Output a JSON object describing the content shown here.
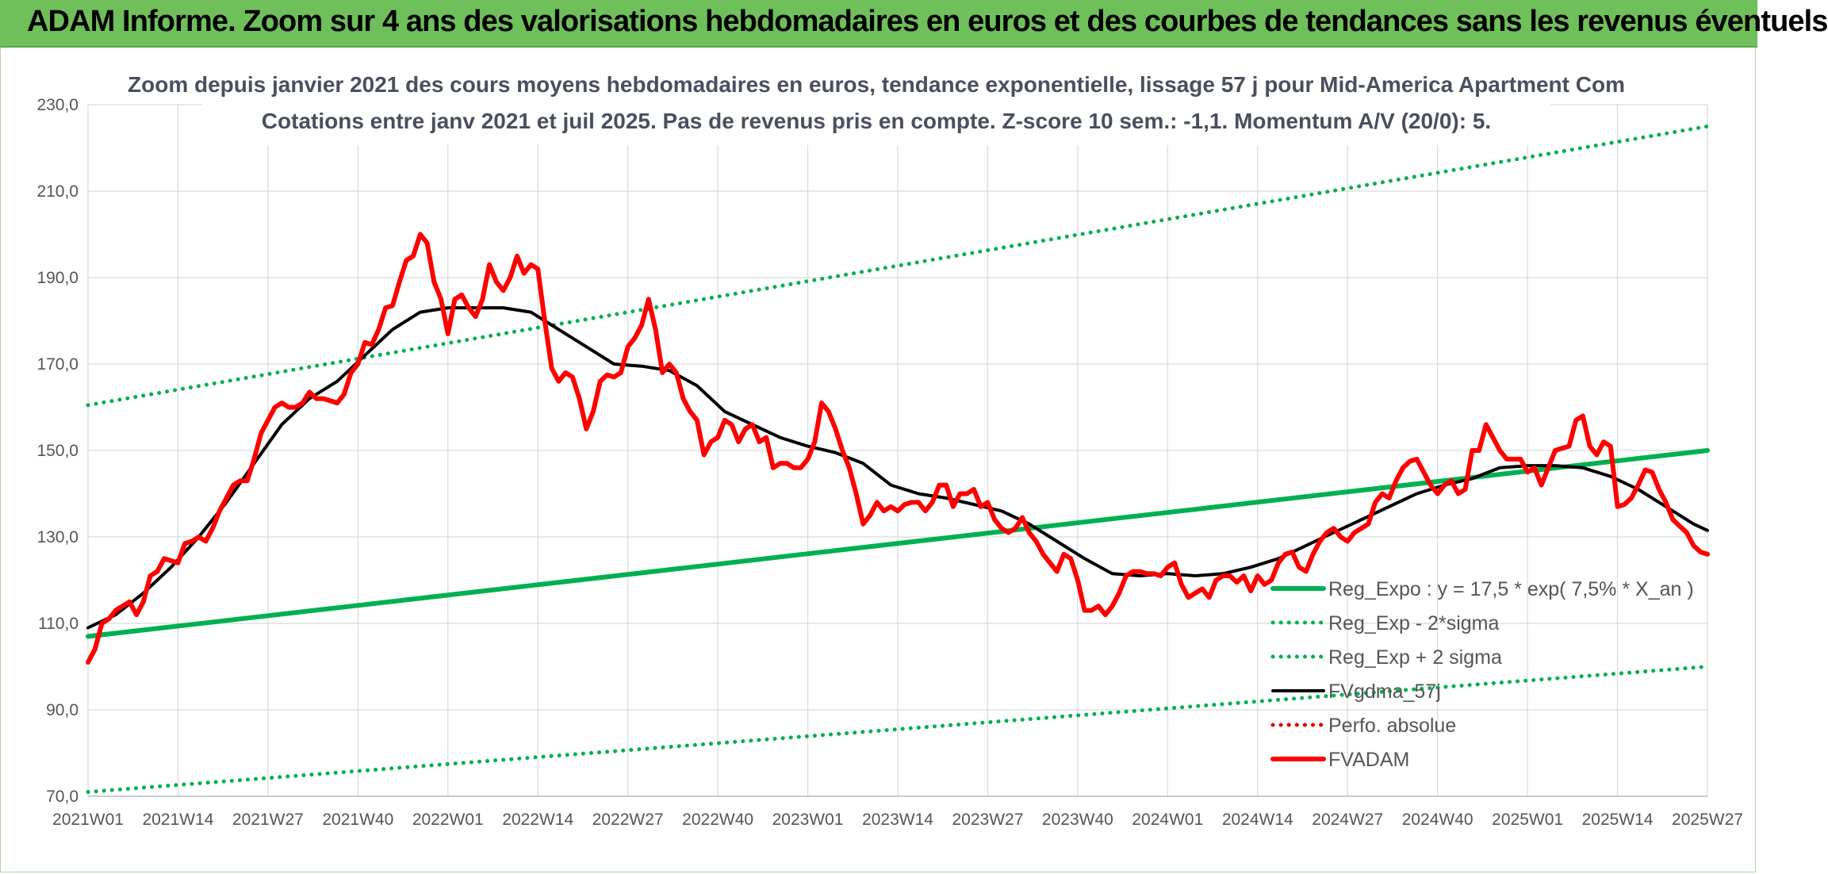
{
  "banner": {
    "title": "ADAM Informe. Zoom sur 4 ans des valorisations hebdomadaires en euros et des courbes de tendances sans les revenus éventuels"
  },
  "chart_data": {
    "type": "line",
    "title_line1": "Zoom depuis janvier 2021 des cours moyens hebdomadaires en euros, tendance exponentielle, lissage 57 j pour Mid-America Apartment Com",
    "title_line2": "Cotations entre janv 2021 et juil 2025. Pas de revenus pris en compte. Z-score 10 sem.: -1,1. Momentum A/V (20/0): 5.",
    "xlabel": "",
    "ylabel": "",
    "ylim": [
      70,
      230
    ],
    "yticks": [
      "70,0",
      "90,0",
      "110,0",
      "130,0",
      "150,0",
      "170,0",
      "190,0",
      "210,0",
      "230,0"
    ],
    "xticks": [
      "2021W01",
      "2021W14",
      "2021W27",
      "2021W40",
      "2022W01",
      "2022W14",
      "2022W27",
      "2022W40",
      "2023W01",
      "2023W14",
      "2023W27",
      "2023W40",
      "2024W01",
      "2024W14",
      "2024W27",
      "2024W40",
      "2025W01",
      "2025W14",
      "2025W27"
    ],
    "x_range_weeks": [
      0,
      234
    ],
    "grid": true,
    "legend_position": "right",
    "legend": [
      {
        "label": "Reg_Expo : y = 17,5 * exp( 7,5% *  X_an )",
        "color": "#00b050",
        "style": "solid"
      },
      {
        "label": "Reg_Exp - 2*sigma",
        "color": "#00b050",
        "style": "dotted"
      },
      {
        "label": "Reg_Exp + 2 sigma",
        "color": "#00b050",
        "style": "dotted"
      },
      {
        "label": "FVgdma_57j",
        "color": "#000000",
        "style": "solid"
      },
      {
        "label": "Perfo. absolue",
        "color": "#e00000",
        "style": "dotted"
      },
      {
        "label": "FVADAM",
        "color": "#ff0000",
        "style": "solid"
      }
    ],
    "series": [
      {
        "name": "Reg_Expo : y = 17,5 * exp( 7,5% *  X_an )",
        "color": "#00b050",
        "points": [
          [
            0,
            107.0
          ],
          [
            234,
            150.0
          ]
        ]
      },
      {
        "name": "Reg_Exp - 2*sigma",
        "color": "#00b050",
        "points": [
          [
            0,
            71.0
          ],
          [
            234,
            100.0
          ]
        ]
      },
      {
        "name": "Reg_Exp + 2 sigma",
        "color": "#00b050",
        "points": [
          [
            0,
            160.5
          ],
          [
            234,
            225.0
          ]
        ]
      },
      {
        "name": "FVgdma_57j",
        "color": "#000000",
        "points": [
          [
            0,
            109
          ],
          [
            4,
            112
          ],
          [
            8,
            117
          ],
          [
            12,
            123
          ],
          [
            16,
            130
          ],
          [
            20,
            138
          ],
          [
            24,
            147
          ],
          [
            28,
            156
          ],
          [
            32,
            162
          ],
          [
            36,
            166
          ],
          [
            40,
            172
          ],
          [
            44,
            178
          ],
          [
            48,
            182
          ],
          [
            52,
            183
          ],
          [
            56,
            183
          ],
          [
            60,
            183
          ],
          [
            64,
            182
          ],
          [
            68,
            178
          ],
          [
            72,
            174
          ],
          [
            76,
            170
          ],
          [
            80,
            169.5
          ],
          [
            84,
            168.5
          ],
          [
            88,
            165
          ],
          [
            92,
            159
          ],
          [
            96,
            156
          ],
          [
            100,
            153
          ],
          [
            104,
            151
          ],
          [
            108,
            149.5
          ],
          [
            112,
            147
          ],
          [
            116,
            142
          ],
          [
            120,
            140
          ],
          [
            124,
            139
          ],
          [
            128,
            137.5
          ],
          [
            132,
            136
          ],
          [
            136,
            133
          ],
          [
            140,
            129
          ],
          [
            144,
            125
          ],
          [
            148,
            121.5
          ],
          [
            152,
            121
          ],
          [
            156,
            121.5
          ],
          [
            160,
            121
          ],
          [
            164,
            121.5
          ],
          [
            168,
            123
          ],
          [
            172,
            125
          ],
          [
            176,
            128
          ],
          [
            180,
            131
          ],
          [
            184,
            134
          ],
          [
            188,
            137
          ],
          [
            192,
            140
          ],
          [
            196,
            142
          ],
          [
            200,
            143.5
          ],
          [
            204,
            146
          ],
          [
            208,
            146.5
          ],
          [
            212,
            146.5
          ],
          [
            216,
            146
          ],
          [
            220,
            144
          ],
          [
            224,
            141
          ],
          [
            228,
            137
          ],
          [
            232,
            133
          ],
          [
            234,
            131.5
          ]
        ]
      },
      {
        "name": "FVADAM",
        "color": "#ff0000",
        "points": [
          [
            0,
            101
          ],
          [
            1,
            104
          ],
          [
            2,
            110
          ],
          [
            3,
            111
          ],
          [
            4,
            113
          ],
          [
            5,
            114
          ],
          [
            6,
            115
          ],
          [
            7,
            112
          ],
          [
            8,
            115
          ],
          [
            9,
            121
          ],
          [
            10,
            122
          ],
          [
            11,
            125
          ],
          [
            12,
            124.5
          ],
          [
            13,
            124
          ],
          [
            14,
            128.5
          ],
          [
            15,
            129
          ],
          [
            16,
            130
          ],
          [
            17,
            129
          ],
          [
            18,
            132
          ],
          [
            19,
            136
          ],
          [
            20,
            139
          ],
          [
            21,
            142
          ],
          [
            22,
            143
          ],
          [
            23,
            143
          ],
          [
            24,
            148
          ],
          [
            25,
            154
          ],
          [
            26,
            157
          ],
          [
            27,
            160
          ],
          [
            28,
            161
          ],
          [
            29,
            160
          ],
          [
            30,
            160
          ],
          [
            31,
            161
          ],
          [
            32,
            163.5
          ],
          [
            33,
            162
          ],
          [
            34,
            162
          ],
          [
            35,
            161.5
          ],
          [
            36,
            161
          ],
          [
            37,
            163
          ],
          [
            38,
            168
          ],
          [
            39,
            170
          ],
          [
            40,
            175
          ],
          [
            41,
            174.5
          ],
          [
            42,
            178
          ],
          [
            43,
            183
          ],
          [
            44,
            183.5
          ],
          [
            45,
            189
          ],
          [
            46,
            194
          ],
          [
            47,
            195
          ],
          [
            48,
            200
          ],
          [
            49,
            198
          ],
          [
            50,
            189
          ],
          [
            51,
            185
          ],
          [
            52,
            177
          ],
          [
            53,
            185
          ],
          [
            54,
            186
          ],
          [
            55,
            183
          ],
          [
            56,
            181
          ],
          [
            57,
            185
          ],
          [
            58,
            193
          ],
          [
            59,
            189
          ],
          [
            60,
            187
          ],
          [
            61,
            190
          ],
          [
            62,
            195
          ],
          [
            63,
            191
          ],
          [
            64,
            193
          ],
          [
            65,
            192
          ],
          [
            66,
            180
          ],
          [
            67,
            169
          ],
          [
            68,
            166
          ],
          [
            69,
            168
          ],
          [
            70,
            167
          ],
          [
            71,
            162
          ],
          [
            72,
            155
          ],
          [
            73,
            159
          ],
          [
            74,
            166
          ],
          [
            75,
            167.5
          ],
          [
            76,
            167
          ],
          [
            77,
            168
          ],
          [
            78,
            174
          ],
          [
            79,
            176
          ],
          [
            80,
            179
          ],
          [
            81,
            185
          ],
          [
            82,
            178
          ],
          [
            83,
            168
          ],
          [
            84,
            170
          ],
          [
            85,
            168
          ],
          [
            86,
            162
          ],
          [
            87,
            159
          ],
          [
            88,
            157
          ],
          [
            89,
            149
          ],
          [
            90,
            152
          ],
          [
            91,
            153
          ],
          [
            92,
            157
          ],
          [
            93,
            156
          ],
          [
            94,
            152
          ],
          [
            95,
            155
          ],
          [
            96,
            156
          ],
          [
            97,
            152
          ],
          [
            98,
            153
          ],
          [
            99,
            146
          ],
          [
            100,
            147
          ],
          [
            101,
            147
          ],
          [
            102,
            146
          ],
          [
            103,
            146
          ],
          [
            104,
            148
          ],
          [
            105,
            152
          ],
          [
            106,
            161
          ],
          [
            107,
            159
          ],
          [
            108,
            155
          ],
          [
            109,
            150
          ],
          [
            110,
            146
          ],
          [
            111,
            140
          ],
          [
            112,
            133
          ],
          [
            113,
            135
          ],
          [
            114,
            138
          ],
          [
            115,
            136
          ],
          [
            116,
            137
          ],
          [
            117,
            136
          ],
          [
            118,
            137.5
          ],
          [
            119,
            138
          ],
          [
            120,
            138
          ],
          [
            121,
            136
          ],
          [
            122,
            138
          ],
          [
            123,
            142
          ],
          [
            124,
            142
          ],
          [
            125,
            137
          ],
          [
            126,
            140
          ],
          [
            127,
            140
          ],
          [
            128,
            141
          ],
          [
            129,
            137
          ],
          [
            130,
            138
          ],
          [
            131,
            134
          ],
          [
            132,
            132
          ],
          [
            133,
            131
          ],
          [
            134,
            132
          ],
          [
            135,
            134.5
          ],
          [
            136,
            131
          ],
          [
            137,
            129
          ],
          [
            138,
            126
          ],
          [
            139,
            124
          ],
          [
            140,
            122
          ],
          [
            141,
            126
          ],
          [
            142,
            125
          ],
          [
            143,
            120
          ],
          [
            144,
            113
          ],
          [
            145,
            113
          ],
          [
            146,
            114
          ],
          [
            147,
            112
          ],
          [
            148,
            114
          ],
          [
            149,
            117
          ],
          [
            150,
            121
          ],
          [
            151,
            122
          ],
          [
            152,
            122
          ],
          [
            153,
            121.5
          ],
          [
            154,
            121.5
          ],
          [
            155,
            121
          ],
          [
            156,
            123
          ],
          [
            157,
            124
          ],
          [
            158,
            119
          ],
          [
            159,
            116
          ],
          [
            160,
            117
          ],
          [
            161,
            118
          ],
          [
            162,
            116
          ],
          [
            163,
            120
          ],
          [
            164,
            121
          ],
          [
            165,
            121
          ],
          [
            166,
            119.5
          ],
          [
            167,
            121
          ],
          [
            168,
            117.5
          ],
          [
            169,
            121
          ],
          [
            170,
            119
          ],
          [
            171,
            120
          ],
          [
            172,
            124
          ],
          [
            173,
            126
          ],
          [
            174,
            126.5
          ],
          [
            175,
            123
          ],
          [
            176,
            122
          ],
          [
            177,
            126
          ],
          [
            178,
            129
          ],
          [
            179,
            131
          ],
          [
            180,
            132
          ],
          [
            181,
            130
          ],
          [
            182,
            129
          ],
          [
            183,
            131
          ],
          [
            184,
            132
          ],
          [
            185,
            133
          ],
          [
            186,
            138
          ],
          [
            187,
            140
          ],
          [
            188,
            139
          ],
          [
            189,
            143
          ],
          [
            190,
            146
          ],
          [
            191,
            147.5
          ],
          [
            192,
            148
          ],
          [
            193,
            145
          ],
          [
            194,
            142
          ],
          [
            195,
            140
          ],
          [
            196,
            142
          ],
          [
            197,
            143
          ],
          [
            198,
            140
          ],
          [
            199,
            141
          ],
          [
            200,
            150
          ],
          [
            201,
            150
          ],
          [
            202,
            156
          ],
          [
            203,
            153
          ],
          [
            204,
            150
          ],
          [
            205,
            148
          ],
          [
            206,
            148
          ],
          [
            207,
            148
          ],
          [
            208,
            145
          ],
          [
            209,
            146
          ],
          [
            210,
            142
          ],
          [
            211,
            146
          ],
          [
            212,
            150
          ],
          [
            213,
            150.5
          ],
          [
            214,
            151
          ],
          [
            215,
            157
          ],
          [
            216,
            158
          ],
          [
            217,
            151
          ],
          [
            218,
            149
          ],
          [
            219,
            152
          ],
          [
            220,
            151
          ],
          [
            221,
            137
          ],
          [
            222,
            137.5
          ],
          [
            223,
            139
          ],
          [
            224,
            142
          ],
          [
            225,
            145.5
          ],
          [
            226,
            145
          ],
          [
            227,
            141
          ],
          [
            228,
            138
          ],
          [
            229,
            134
          ],
          [
            230,
            132.5
          ],
          [
            231,
            131
          ],
          [
            232,
            128
          ],
          [
            233,
            126.5
          ],
          [
            234,
            126
          ]
        ]
      }
    ]
  }
}
